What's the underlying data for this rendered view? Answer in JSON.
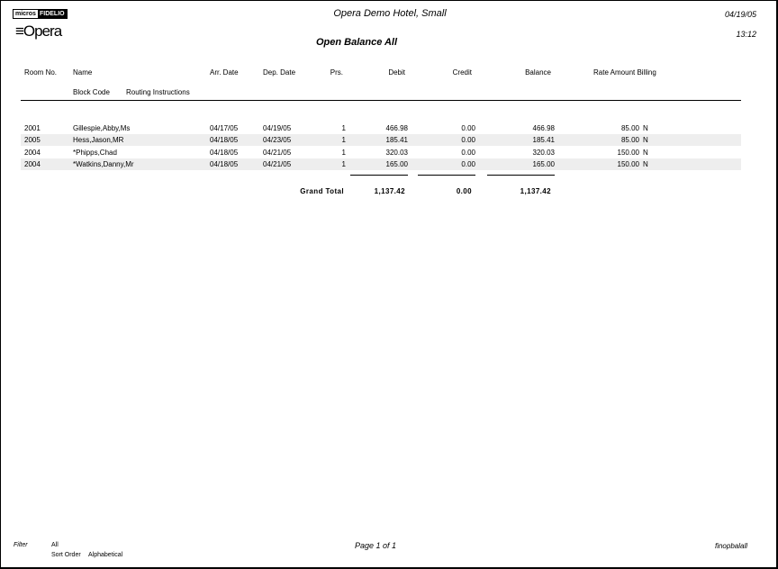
{
  "header": {
    "logo_left": "micros",
    "logo_right": "FIDELIO",
    "product": "Opera",
    "hotel": "Opera Demo Hotel, Small",
    "date": "04/19/05",
    "time": "13:12",
    "title": "Open Balance All"
  },
  "columns": {
    "room": "Room No.",
    "name": "Name",
    "arr": "Arr. Date",
    "dep": "Dep. Date",
    "prs": "Prs.",
    "debit": "Debit",
    "credit": "Credit",
    "balance": "Balance",
    "rate_billing": "Rate Amount Billing",
    "block": "Block Code",
    "routing": "Routing Instructions"
  },
  "rows": [
    {
      "room": "2001",
      "name": "Gillespie,Abby,Ms",
      "arr": "04/17/05",
      "dep": "04/19/05",
      "prs": "1",
      "debit": "466.98",
      "credit": "0.00",
      "balance": "466.98",
      "rate": "85.00",
      "billing": "N"
    },
    {
      "room": "2005",
      "name": "Hess,Jason,MR",
      "arr": "04/18/05",
      "dep": "04/23/05",
      "prs": "1",
      "debit": "185.41",
      "credit": "0.00",
      "balance": "185.41",
      "rate": "85.00",
      "billing": "N"
    },
    {
      "room": "2004",
      "name": "*Phipps,Chad",
      "arr": "04/18/05",
      "dep": "04/21/05",
      "prs": "1",
      "debit": "320.03",
      "credit": "0.00",
      "balance": "320.03",
      "rate": "150.00",
      "billing": "N"
    },
    {
      "room": "2004",
      "name": "*Watkins,Danny,Mr",
      "arr": "04/18/05",
      "dep": "04/21/05",
      "prs": "1",
      "debit": "165.00",
      "credit": "0.00",
      "balance": "165.00",
      "rate": "150.00",
      "billing": "N"
    }
  ],
  "totals": {
    "label": "Grand Total",
    "debit": "1,137.42",
    "credit": "0.00",
    "balance": "1,137.42"
  },
  "footer": {
    "filter_label": "Filter",
    "filter_value": "All",
    "sort_label": "Sort Order",
    "sort_value": "Alphabetical",
    "page": "Page 1 of 1",
    "report_id": "finopbalall"
  }
}
